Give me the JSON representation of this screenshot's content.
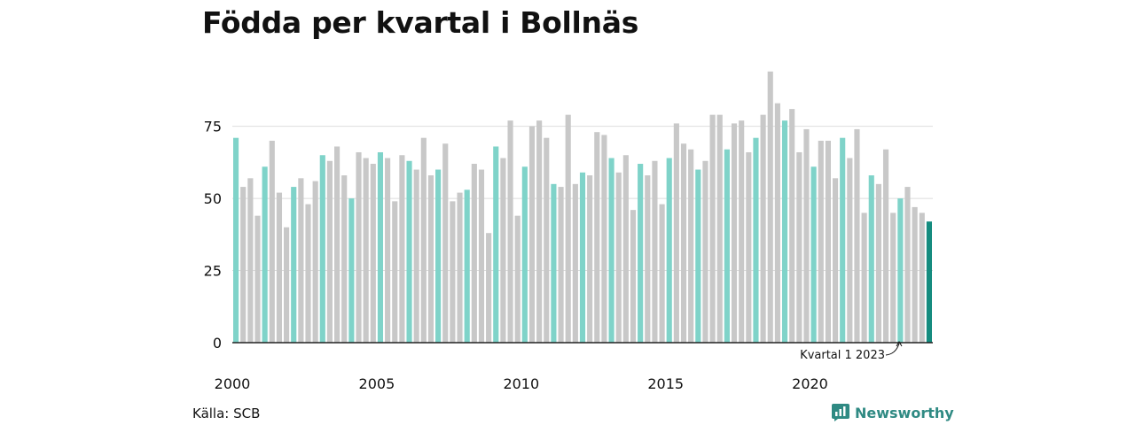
{
  "title": "Födda per kvartal i Bollnäs",
  "source": "Källa: SCB",
  "brand": "Newsworthy",
  "colors": {
    "bar": "#c8c8c8",
    "bar_q1": "#7fd3c9",
    "bar_latest": "#158c7f",
    "grid": "#dddddd",
    "brand": "#2f8a83"
  },
  "chart_data": {
    "type": "bar",
    "title": "Födda per kvartal i Bollnäs",
    "xlabel": "",
    "ylabel": "",
    "ylim": [
      0,
      97
    ],
    "yticks": [
      0,
      25,
      50,
      75
    ],
    "xticks": [
      "2000",
      "2005",
      "2010",
      "2015",
      "2020"
    ],
    "start": "2000 Q1",
    "highlight": "Quarter 1 bars in teal; latest quarter in dark teal",
    "annotation": "Kvartal 1 2023",
    "values": [
      71,
      54,
      57,
      44,
      61,
      70,
      52,
      40,
      54,
      57,
      48,
      56,
      65,
      63,
      68,
      58,
      50,
      66,
      64,
      62,
      66,
      64,
      49,
      65,
      63,
      60,
      71,
      58,
      60,
      69,
      49,
      52,
      53,
      62,
      60,
      38,
      68,
      64,
      77,
      44,
      61,
      75,
      77,
      71,
      55,
      54,
      79,
      55,
      59,
      58,
      73,
      72,
      64,
      59,
      65,
      46,
      62,
      58,
      63,
      48,
      64,
      76,
      69,
      67,
      60,
      63,
      79,
      79,
      67,
      76,
      77,
      66,
      71,
      79,
      94,
      83,
      77,
      81,
      66,
      74,
      61,
      70,
      70,
      57,
      71,
      64,
      74,
      45,
      58,
      55,
      67,
      45,
      50,
      54,
      47,
      45,
      42
    ]
  }
}
